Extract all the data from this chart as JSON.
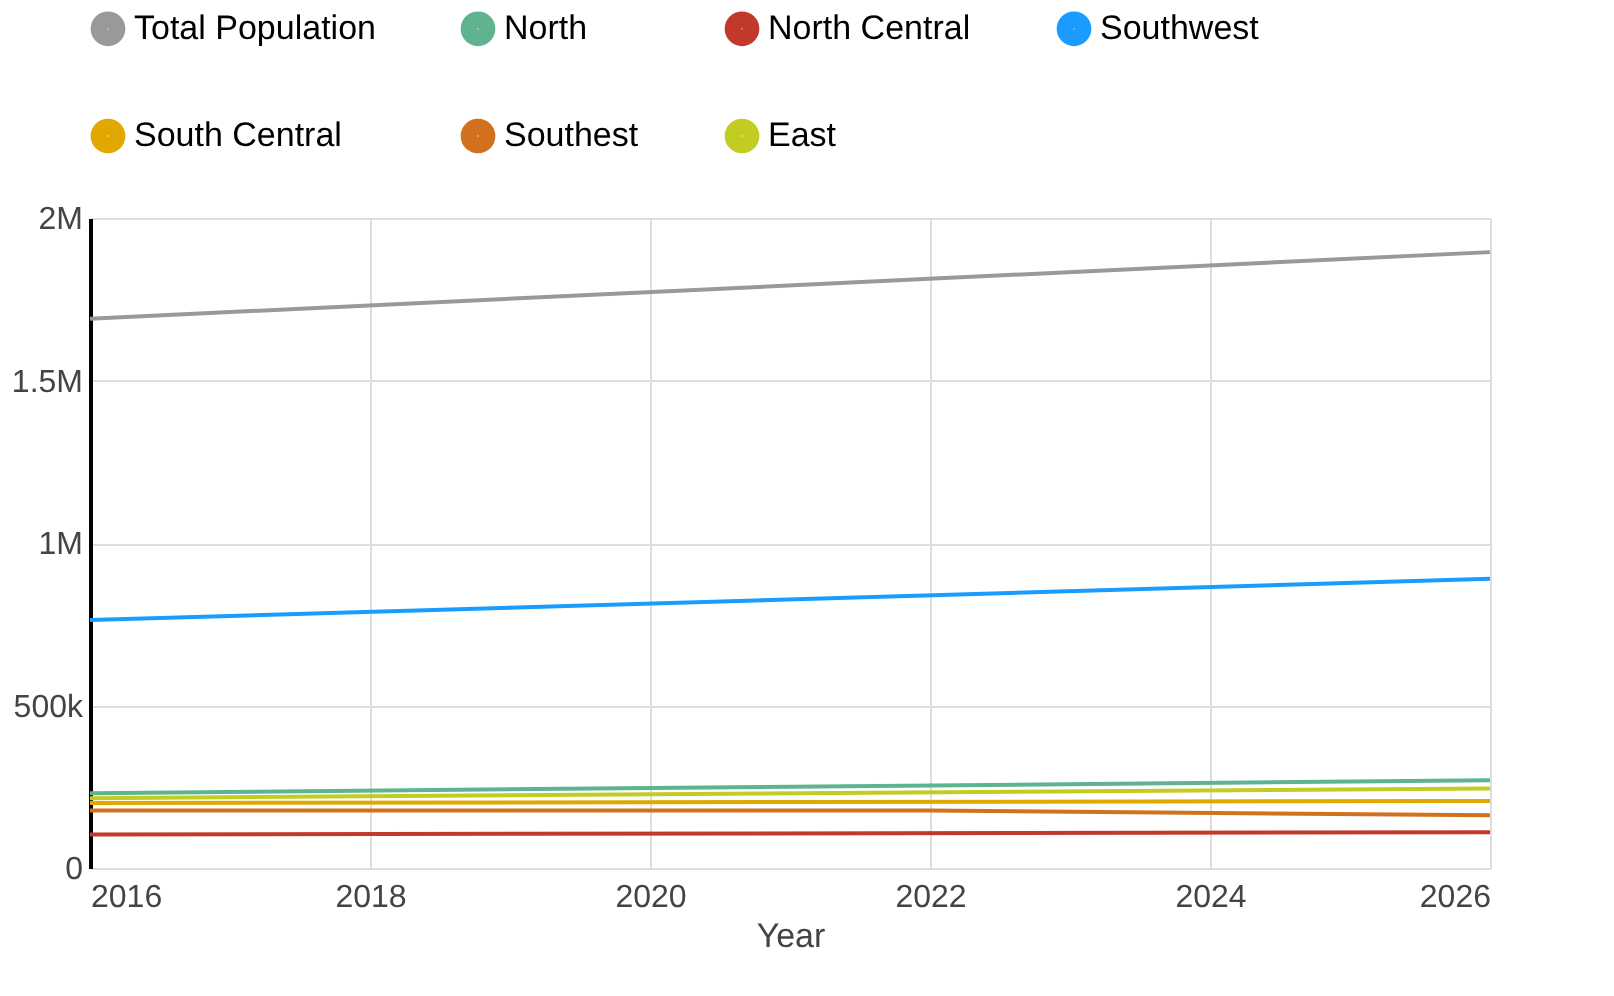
{
  "chart_data": {
    "type": "line",
    "xlabel": "Year",
    "xlim": [
      2016,
      2026
    ],
    "xticks": [
      2016,
      2018,
      2020,
      2022,
      2024,
      2026
    ],
    "ylim": [
      0,
      2000000
    ],
    "yticks": [
      {
        "value": 0,
        "label": "0"
      },
      {
        "value": 500000,
        "label": "500k"
      },
      {
        "value": 1000000,
        "label": "1M"
      },
      {
        "value": 1500000,
        "label": "1.5M"
      },
      {
        "value": 2000000,
        "label": "2M"
      }
    ],
    "grid": true,
    "legend": "top",
    "marker": "none",
    "line_style": "solid",
    "series": [
      {
        "name": "Total Population",
        "color": "#999999",
        "x": [
          2016,
          2026
        ],
        "values": [
          1690000,
          1895000
        ]
      },
      {
        "name": "North",
        "color": "#5fb38f",
        "x": [
          2016,
          2026
        ],
        "values": [
          230000,
          270000
        ]
      },
      {
        "name": "North Central",
        "color": "#c0392b",
        "x": [
          2016,
          2026
        ],
        "values": [
          103000,
          110000
        ]
      },
      {
        "name": "Southwest",
        "color": "#1a9bff",
        "x": [
          2016,
          2026
        ],
        "values": [
          763000,
          890000
        ]
      },
      {
        "name": "South Central",
        "color": "#e0a800",
        "x": [
          2016,
          2026
        ],
        "values": [
          200000,
          206000
        ]
      },
      {
        "name": "Southest",
        "color": "#d2711d",
        "x": [
          2016,
          2022,
          2026
        ],
        "values": [
          177000,
          177000,
          162000
        ]
      },
      {
        "name": "East",
        "color": "#c2cd23",
        "x": [
          2016,
          2026
        ],
        "values": [
          215000,
          245000
        ]
      }
    ]
  }
}
